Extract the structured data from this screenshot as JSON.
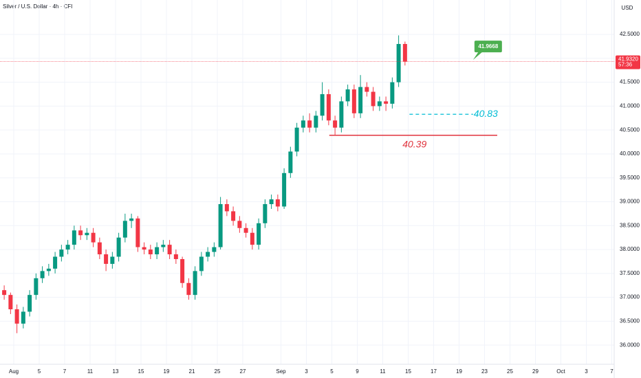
{
  "chart_data": {
    "type": "candlestick",
    "title": "Silver / U.S. Dollar · 4h · CFI",
    "currency": "USD",
    "up_color": "#089981",
    "down_color": "#f23645",
    "x": [
      -0.75,
      -0.25,
      0.25,
      0.75,
      1.25,
      1.75,
      2.25,
      2.75,
      3.25,
      3.75,
      4.25,
      4.75,
      5.25,
      5.75,
      6.25,
      6.75,
      7.25,
      7.75,
      8.25,
      8.75,
      9.25,
      9.75,
      10.25,
      10.75,
      11.25,
      11.75,
      12.25,
      12.75,
      13.25,
      13.75,
      14.25,
      14.75,
      15.25,
      15.75,
      16.25,
      16.75,
      17.25,
      17.75,
      18.25,
      18.75,
      19.25,
      19.75,
      20.25,
      20.75,
      21.25,
      21.75,
      22.25,
      22.75,
      23.25,
      23.75,
      24.25,
      24.75,
      25.25,
      25.75,
      26.25,
      26.75,
      27.25,
      27.75,
      28.25,
      28.75,
      29.25,
      29.75,
      30.25,
      30.75
    ],
    "open": [
      37.15,
      37.05,
      36.75,
      36.45,
      36.7,
      37.05,
      37.4,
      37.55,
      37.6,
      37.85,
      38.0,
      38.1,
      38.4,
      38.3,
      38.35,
      38.15,
      37.9,
      37.7,
      37.85,
      38.25,
      38.6,
      38.65,
      38.05,
      38.0,
      37.9,
      38.05,
      38.1,
      37.9,
      37.8,
      37.3,
      37.05,
      37.55,
      37.85,
      37.95,
      38.05,
      38.95,
      38.8,
      38.6,
      38.45,
      38.35,
      38.1,
      38.55,
      38.95,
      39.05,
      38.9,
      39.6,
      40.05,
      40.55,
      40.7,
      40.55,
      40.8,
      41.25,
      40.7,
      40.55,
      41.1,
      41.35,
      40.85,
      41.4,
      41.3,
      41.0,
      41.1,
      41.05,
      41.5,
      42.3
    ],
    "high": [
      37.25,
      37.1,
      36.85,
      36.8,
      37.15,
      37.5,
      37.65,
      37.7,
      37.95,
      38.1,
      38.2,
      38.5,
      38.5,
      38.45,
      38.45,
      38.25,
      38.0,
      37.95,
      38.35,
      38.75,
      38.75,
      38.7,
      38.15,
      38.1,
      38.15,
      38.2,
      38.2,
      38.0,
      37.85,
      37.4,
      37.65,
      37.95,
      38.05,
      38.15,
      39.1,
      39.05,
      38.9,
      38.7,
      38.55,
      38.45,
      38.65,
      39.05,
      39.15,
      39.15,
      39.7,
      40.15,
      40.65,
      40.8,
      40.85,
      40.9,
      41.5,
      41.35,
      40.8,
      41.2,
      41.45,
      41.45,
      41.65,
      41.5,
      41.4,
      41.2,
      41.2,
      41.6,
      42.48,
      42.35
    ],
    "low": [
      36.95,
      36.65,
      36.25,
      36.35,
      36.6,
      36.95,
      37.3,
      37.45,
      37.5,
      37.75,
      37.9,
      38.0,
      38.2,
      38.2,
      38.05,
      37.8,
      37.55,
      37.6,
      37.75,
      38.15,
      38.45,
      37.95,
      37.9,
      37.8,
      37.8,
      37.95,
      37.8,
      37.7,
      37.2,
      36.95,
      36.95,
      37.45,
      37.75,
      37.85,
      38.0,
      38.7,
      38.5,
      38.35,
      38.25,
      38.0,
      38.0,
      38.45,
      38.85,
      38.8,
      38.85,
      39.5,
      39.95,
      40.45,
      40.45,
      40.45,
      40.7,
      40.6,
      40.4,
      40.45,
      41.0,
      40.75,
      40.75,
      41.2,
      40.9,
      40.9,
      40.9,
      40.95,
      41.4,
      41.85
    ],
    "close": [
      37.05,
      36.75,
      36.45,
      36.7,
      37.05,
      37.4,
      37.55,
      37.6,
      37.85,
      38.0,
      38.1,
      38.4,
      38.3,
      38.35,
      38.15,
      37.9,
      37.7,
      37.85,
      38.25,
      38.6,
      38.65,
      38.05,
      38.0,
      37.9,
      38.05,
      38.1,
      37.9,
      37.8,
      37.3,
      37.05,
      37.55,
      37.85,
      37.95,
      38.05,
      38.95,
      38.8,
      38.6,
      38.45,
      38.35,
      38.1,
      38.55,
      38.95,
      39.05,
      38.9,
      39.6,
      40.05,
      40.55,
      40.7,
      40.55,
      40.8,
      41.25,
      40.7,
      40.55,
      41.1,
      41.35,
      40.85,
      41.4,
      41.3,
      41.0,
      41.1,
      41.05,
      41.5,
      42.3,
      41.93
    ],
    "xlim": [
      -1.08,
      47.19
    ],
    "ylim": [
      35.6,
      43.22
    ],
    "xticks": [
      {
        "value": 0,
        "label": "Aug"
      },
      {
        "value": 2,
        "label": "5"
      },
      {
        "value": 4,
        "label": "7"
      },
      {
        "value": 6,
        "label": "11"
      },
      {
        "value": 8,
        "label": "13"
      },
      {
        "value": 10,
        "label": "15"
      },
      {
        "value": 12,
        "label": "19"
      },
      {
        "value": 14,
        "label": "21"
      },
      {
        "value": 16,
        "label": "25"
      },
      {
        "value": 18,
        "label": "27"
      },
      {
        "value": 21,
        "label": "Sep"
      },
      {
        "value": 23,
        "label": "3"
      },
      {
        "value": 25,
        "label": "5"
      },
      {
        "value": 27,
        "label": "9"
      },
      {
        "value": 29,
        "label": "11"
      },
      {
        "value": 31,
        "label": "15"
      },
      {
        "value": 33,
        "label": "17"
      },
      {
        "value": 35,
        "label": "19"
      },
      {
        "value": 37,
        "label": "23"
      },
      {
        "value": 39,
        "label": "25"
      },
      {
        "value": 41,
        "label": "29"
      },
      {
        "value": 43,
        "label": "Oct"
      },
      {
        "value": 45,
        "label": "3"
      },
      {
        "value": 47,
        "label": "7"
      }
    ],
    "yticks": [
      {
        "value": 36,
        "label": "36.0000"
      },
      {
        "value": 36.5,
        "label": "36.5000"
      },
      {
        "value": 37,
        "label": "37.0000"
      },
      {
        "value": 37.5,
        "label": "37.5000"
      },
      {
        "value": 38,
        "label": "38.0000"
      },
      {
        "value": 38.5,
        "label": "38.5000"
      },
      {
        "value": 39,
        "label": "39.0000"
      },
      {
        "value": 39.5,
        "label": "39.5000"
      },
      {
        "value": 40,
        "label": "40.0000"
      },
      {
        "value": 40.5,
        "label": "40.5000"
      },
      {
        "value": 41,
        "label": "41.0000"
      },
      {
        "value": 41.5,
        "label": "41.5000"
      },
      {
        "value": 42,
        "label": "42.0000"
      },
      {
        "value": 42.5,
        "label": "42.5000"
      }
    ],
    "grid": true,
    "last_price": {
      "value": 41.932,
      "label": "41.9320"
    },
    "countdown": "57:36",
    "target": 41.9668,
    "support_dashed": 40.83,
    "support_solid": 40.39
  }
}
